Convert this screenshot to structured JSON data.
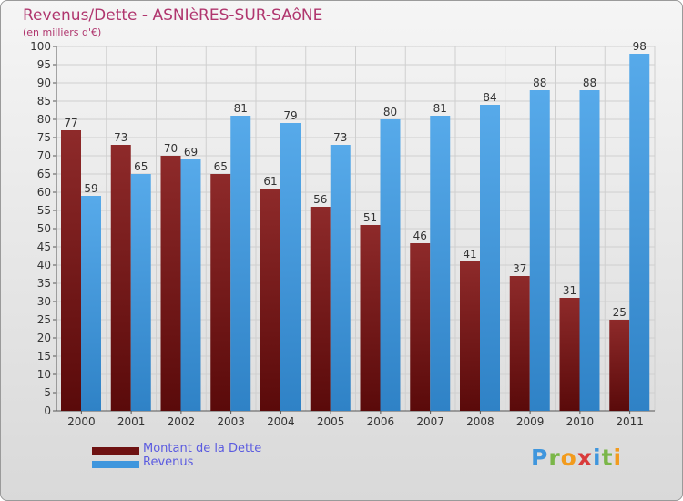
{
  "header": {
    "title": "Revenus/Dette - ASNIèRES-SUR-SAôNE",
    "subtitle": "(en milliers d'€)"
  },
  "logo": {
    "text": "Proxiti"
  },
  "colors": {
    "title": "#b0366e",
    "dette": "#7a1a1a",
    "revenus": "#3f96dd",
    "legend_text": "#5b5be0",
    "grid": "#cfcfcf"
  },
  "chart_data": {
    "type": "bar",
    "categories": [
      "2000",
      "2001",
      "2002",
      "2003",
      "2004",
      "2005",
      "2006",
      "2007",
      "2008",
      "2009",
      "2010",
      "2011"
    ],
    "series": [
      {
        "name": "Montant de la Dette",
        "values": [
          77,
          73,
          70,
          65,
          61,
          56,
          51,
          46,
          41,
          37,
          31,
          25
        ]
      },
      {
        "name": "Revenus",
        "values": [
          59,
          65,
          69,
          81,
          79,
          73,
          80,
          81,
          84,
          88,
          88,
          98
        ]
      }
    ],
    "ylim": [
      0,
      100
    ],
    "ytick_step": 5,
    "grid": true,
    "legend_position": "bottom-left",
    "show_data_labels": true
  }
}
